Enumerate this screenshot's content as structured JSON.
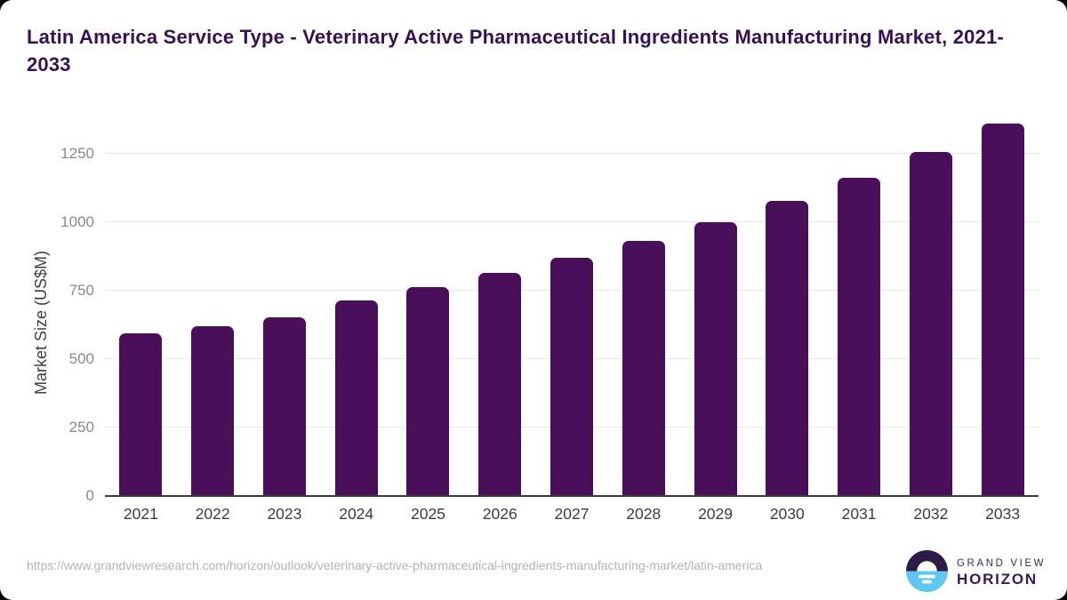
{
  "title": "Latin America Service Type - Veterinary Active Pharmaceutical Ingredients Manufacturing Market, 2021-2033",
  "chart_data": {
    "type": "bar",
    "title": "Latin America Service Type - Veterinary Active Pharmaceutical Ingredients Manufacturing Market, 2021-2033",
    "categories": [
      "2021",
      "2022",
      "2023",
      "2024",
      "2025",
      "2026",
      "2027",
      "2028",
      "2029",
      "2030",
      "2031",
      "2032",
      "2033"
    ],
    "values": [
      590,
      616,
      649,
      710,
      760,
      812,
      868,
      929,
      997,
      1076,
      1160,
      1254,
      1358
    ],
    "xlabel": "",
    "ylabel": "Market Size (US$M)",
    "yticks": [
      0,
      250,
      500,
      750,
      1000,
      1250
    ],
    "ylim": [
      0,
      1422
    ],
    "grid": true,
    "legend_position": "none",
    "bar_color": "#491059",
    "gridline_color": "#e9e9e9",
    "axis_line_color": "#3a3a3a"
  },
  "footer": {
    "source_url": "https://www.grandviewresearch.com/horizon/outlook/veterinary-active-pharmaceutical-ingredients-manufacturing-market/latin-america",
    "logo": {
      "line1": "GRAND VIEW",
      "line2": "HORIZON",
      "mark_top_color": "#2e1a47",
      "mark_bottom_color": "#5ec8f2"
    }
  }
}
